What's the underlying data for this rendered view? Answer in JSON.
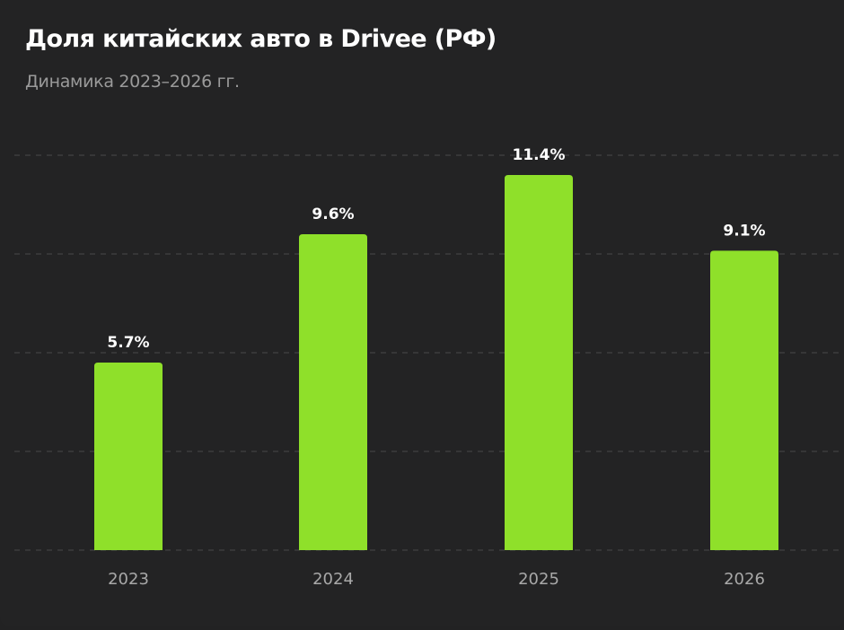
{
  "header": {
    "title": "Доля китайских авто в Drivee (РФ)",
    "subtitle": "Динамика 2023–2026 гг."
  },
  "colors": {
    "bar": "#8fe02a",
    "background": "#232324",
    "grid": "#4a4a4a",
    "title": "#ffffff",
    "subtitle": "#9a9a9a"
  },
  "chart_data": {
    "type": "bar",
    "title": "Доля китайских авто в Drivee (РФ)",
    "subtitle": "Динамика 2023–2026 гг.",
    "categories": [
      "2023",
      "2024",
      "2025",
      "2026"
    ],
    "values": [
      5.7,
      9.6,
      11.4,
      9.1
    ],
    "value_labels": [
      "5.7%",
      "9.6%",
      "11.4%",
      "9.1%"
    ],
    "unit": "%",
    "xlabel": "",
    "ylabel": "",
    "ylim": [
      0,
      12
    ],
    "grid_values": [
      0,
      3,
      6,
      9,
      12
    ],
    "grid": true,
    "grid_style": "dashed",
    "y_tick_labels_visible": false,
    "legend": "none"
  }
}
